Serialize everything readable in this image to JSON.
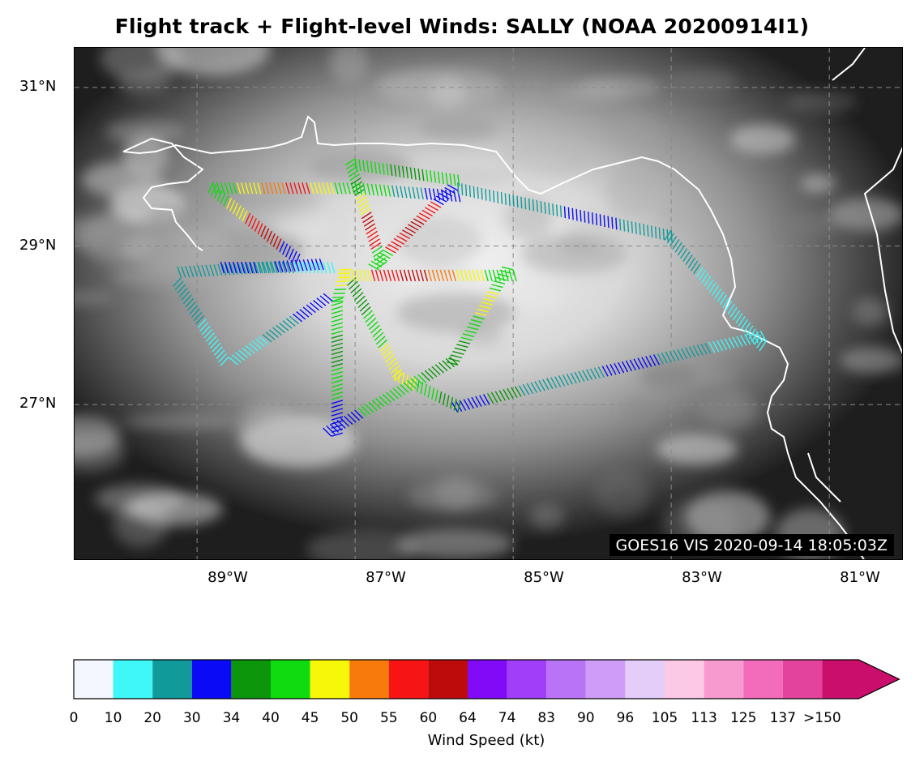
{
  "title": "Flight track + Flight-level Winds: SALLY (NOAA 20200914I1)",
  "satellite_stamp": "GOES16 VIS 2020-09-14 18:05:03Z",
  "lat_labels": [
    "31°N",
    "29°N",
    "27°N"
  ],
  "lon_labels": [
    "89°W",
    "87°W",
    "85°W",
    "83°W",
    "81°W"
  ],
  "colorbar": {
    "label": "Wind Speed (kt)",
    "ticks": [
      "0",
      "10",
      "20",
      "30",
      "34",
      "40",
      "45",
      "50",
      "55",
      "60",
      "64",
      "74",
      "83",
      "90",
      "96",
      "105",
      "113",
      "125",
      "137",
      ">150"
    ],
    "colors": [
      "#f5f7ff",
      "#3ff7f7",
      "#119a9a",
      "#0a0af7",
      "#0c960c",
      "#0fdc0f",
      "#f7f70a",
      "#f77a0a",
      "#f71414",
      "#bd0b0b",
      "#820bf7",
      "#a03ff7",
      "#b873f7",
      "#cf9df7",
      "#e5cdfa",
      "#fbc8e6",
      "#f79ad0",
      "#f26cbb",
      "#e3439d",
      "#c90e6c"
    ]
  },
  "flight_track": {
    "legs": [
      {
        "from": [
          -88.8,
          29.8
        ],
        "to": [
          -87.0,
          29.8
        ],
        "colors": [
          "#0fdc0f",
          "#f7f70a",
          "#f77a0a",
          "#f71414",
          "#f7f70a",
          "#0fdc0f"
        ]
      },
      {
        "from": [
          -88.8,
          29.8
        ],
        "to": [
          -87.7,
          28.9
        ],
        "colors": [
          "#0fdc0f",
          "#f7f70a",
          "#f71414",
          "#bd0b0b",
          "#0a0af7"
        ]
      },
      {
        "from": [
          -87.0,
          30.1
        ],
        "to": [
          -86.6,
          28.8
        ],
        "colors": [
          "#0fdc0f",
          "#0c960c",
          "#f7f70a",
          "#bd0b0b",
          "#f71414",
          "#0fdc0f"
        ]
      },
      {
        "from": [
          -87.0,
          30.1
        ],
        "to": [
          -85.7,
          29.9
        ],
        "colors": [
          "#0fdc0f",
          "#0c960c",
          "#0fdc0f"
        ]
      },
      {
        "from": [
          -87.0,
          29.8
        ],
        "to": [
          -85.7,
          29.7
        ],
        "colors": [
          "#0fdc0f",
          "#119a9a",
          "#0a0af7"
        ]
      },
      {
        "from": [
          -85.7,
          29.7
        ],
        "to": [
          -86.7,
          28.7
        ],
        "colors": [
          "#0a0af7",
          "#f71414",
          "#bd0b0b",
          "#f71414",
          "#0fdc0f"
        ]
      },
      {
        "from": [
          -85.7,
          29.8
        ],
        "to": [
          -83.0,
          29.2
        ],
        "colors": [
          "#119a9a",
          "#119a9a",
          "#0a0af7",
          "#119a9a"
        ]
      },
      {
        "from": [
          -83.0,
          29.2
        ],
        "to": [
          -81.8,
          27.8
        ],
        "colors": [
          "#119a9a",
          "#3ff7f7",
          "#3ff7f7"
        ]
      },
      {
        "from": [
          -81.8,
          27.8
        ],
        "to": [
          -84.5,
          27.2
        ],
        "colors": [
          "#3ff7f7",
          "#119a9a",
          "#0a0af7",
          "#119a9a"
        ]
      },
      {
        "from": [
          -84.5,
          27.2
        ],
        "to": [
          -85.7,
          26.9
        ],
        "colors": [
          "#119a9a",
          "#0c960c",
          "#0a0af7"
        ]
      },
      {
        "from": [
          -85.7,
          26.9
        ],
        "to": [
          -86.5,
          27.3
        ],
        "colors": [
          "#0c960c",
          "#0fdc0f",
          "#f7f70a"
        ]
      },
      {
        "from": [
          -86.5,
          27.3
        ],
        "to": [
          -87.1,
          28.5
        ],
        "colors": [
          "#f7f70a",
          "#0fdc0f",
          "#0c960c"
        ]
      },
      {
        "from": [
          -87.2,
          28.7
        ],
        "to": [
          -85.0,
          28.7
        ],
        "colors": [
          "#f7f70a",
          "#f71414",
          "#bd0b0b",
          "#f77a0a",
          "#f7f70a",
          "#0fdc0f"
        ]
      },
      {
        "from": [
          -85.0,
          28.7
        ],
        "to": [
          -85.7,
          27.5
        ],
        "colors": [
          "#0fdc0f",
          "#f7f70a",
          "#0fdc0f",
          "#0c960c"
        ]
      },
      {
        "from": [
          -85.7,
          27.5
        ],
        "to": [
          -87.3,
          26.6
        ],
        "colors": [
          "#0c960c",
          "#0fdc0f",
          "#0fdc0f",
          "#0a0af7"
        ]
      },
      {
        "from": [
          -87.3,
          26.6
        ],
        "to": [
          -87.3,
          28.3
        ],
        "colors": [
          "#0a0af7",
          "#0fdc0f",
          "#0c960c",
          "#0fdc0f"
        ]
      },
      {
        "from": [
          -87.3,
          28.3
        ],
        "to": [
          -87.2,
          28.7
        ],
        "colors": [
          "#0fdc0f",
          "#f7f70a"
        ]
      },
      {
        "from": [
          -87.4,
          28.7
        ],
        "to": [
          -89.2,
          28.6
        ],
        "colors": [
          "#0a0af7",
          "#119a9a",
          "#119a9a"
        ]
      },
      {
        "from": [
          -89.2,
          28.6
        ],
        "to": [
          -88.6,
          27.6
        ],
        "colors": [
          "#119a9a",
          "#3ff7f7"
        ]
      },
      {
        "from": [
          -88.6,
          27.6
        ],
        "to": [
          -87.4,
          28.4
        ],
        "colors": [
          "#3ff7f7",
          "#119a9a",
          "#0a0af7"
        ]
      },
      {
        "from": [
          -88.7,
          28.8
        ],
        "to": [
          -87.3,
          28.8
        ],
        "colors": [
          "#0a0af7",
          "#119a9a",
          "#3ff7f7"
        ]
      }
    ]
  }
}
